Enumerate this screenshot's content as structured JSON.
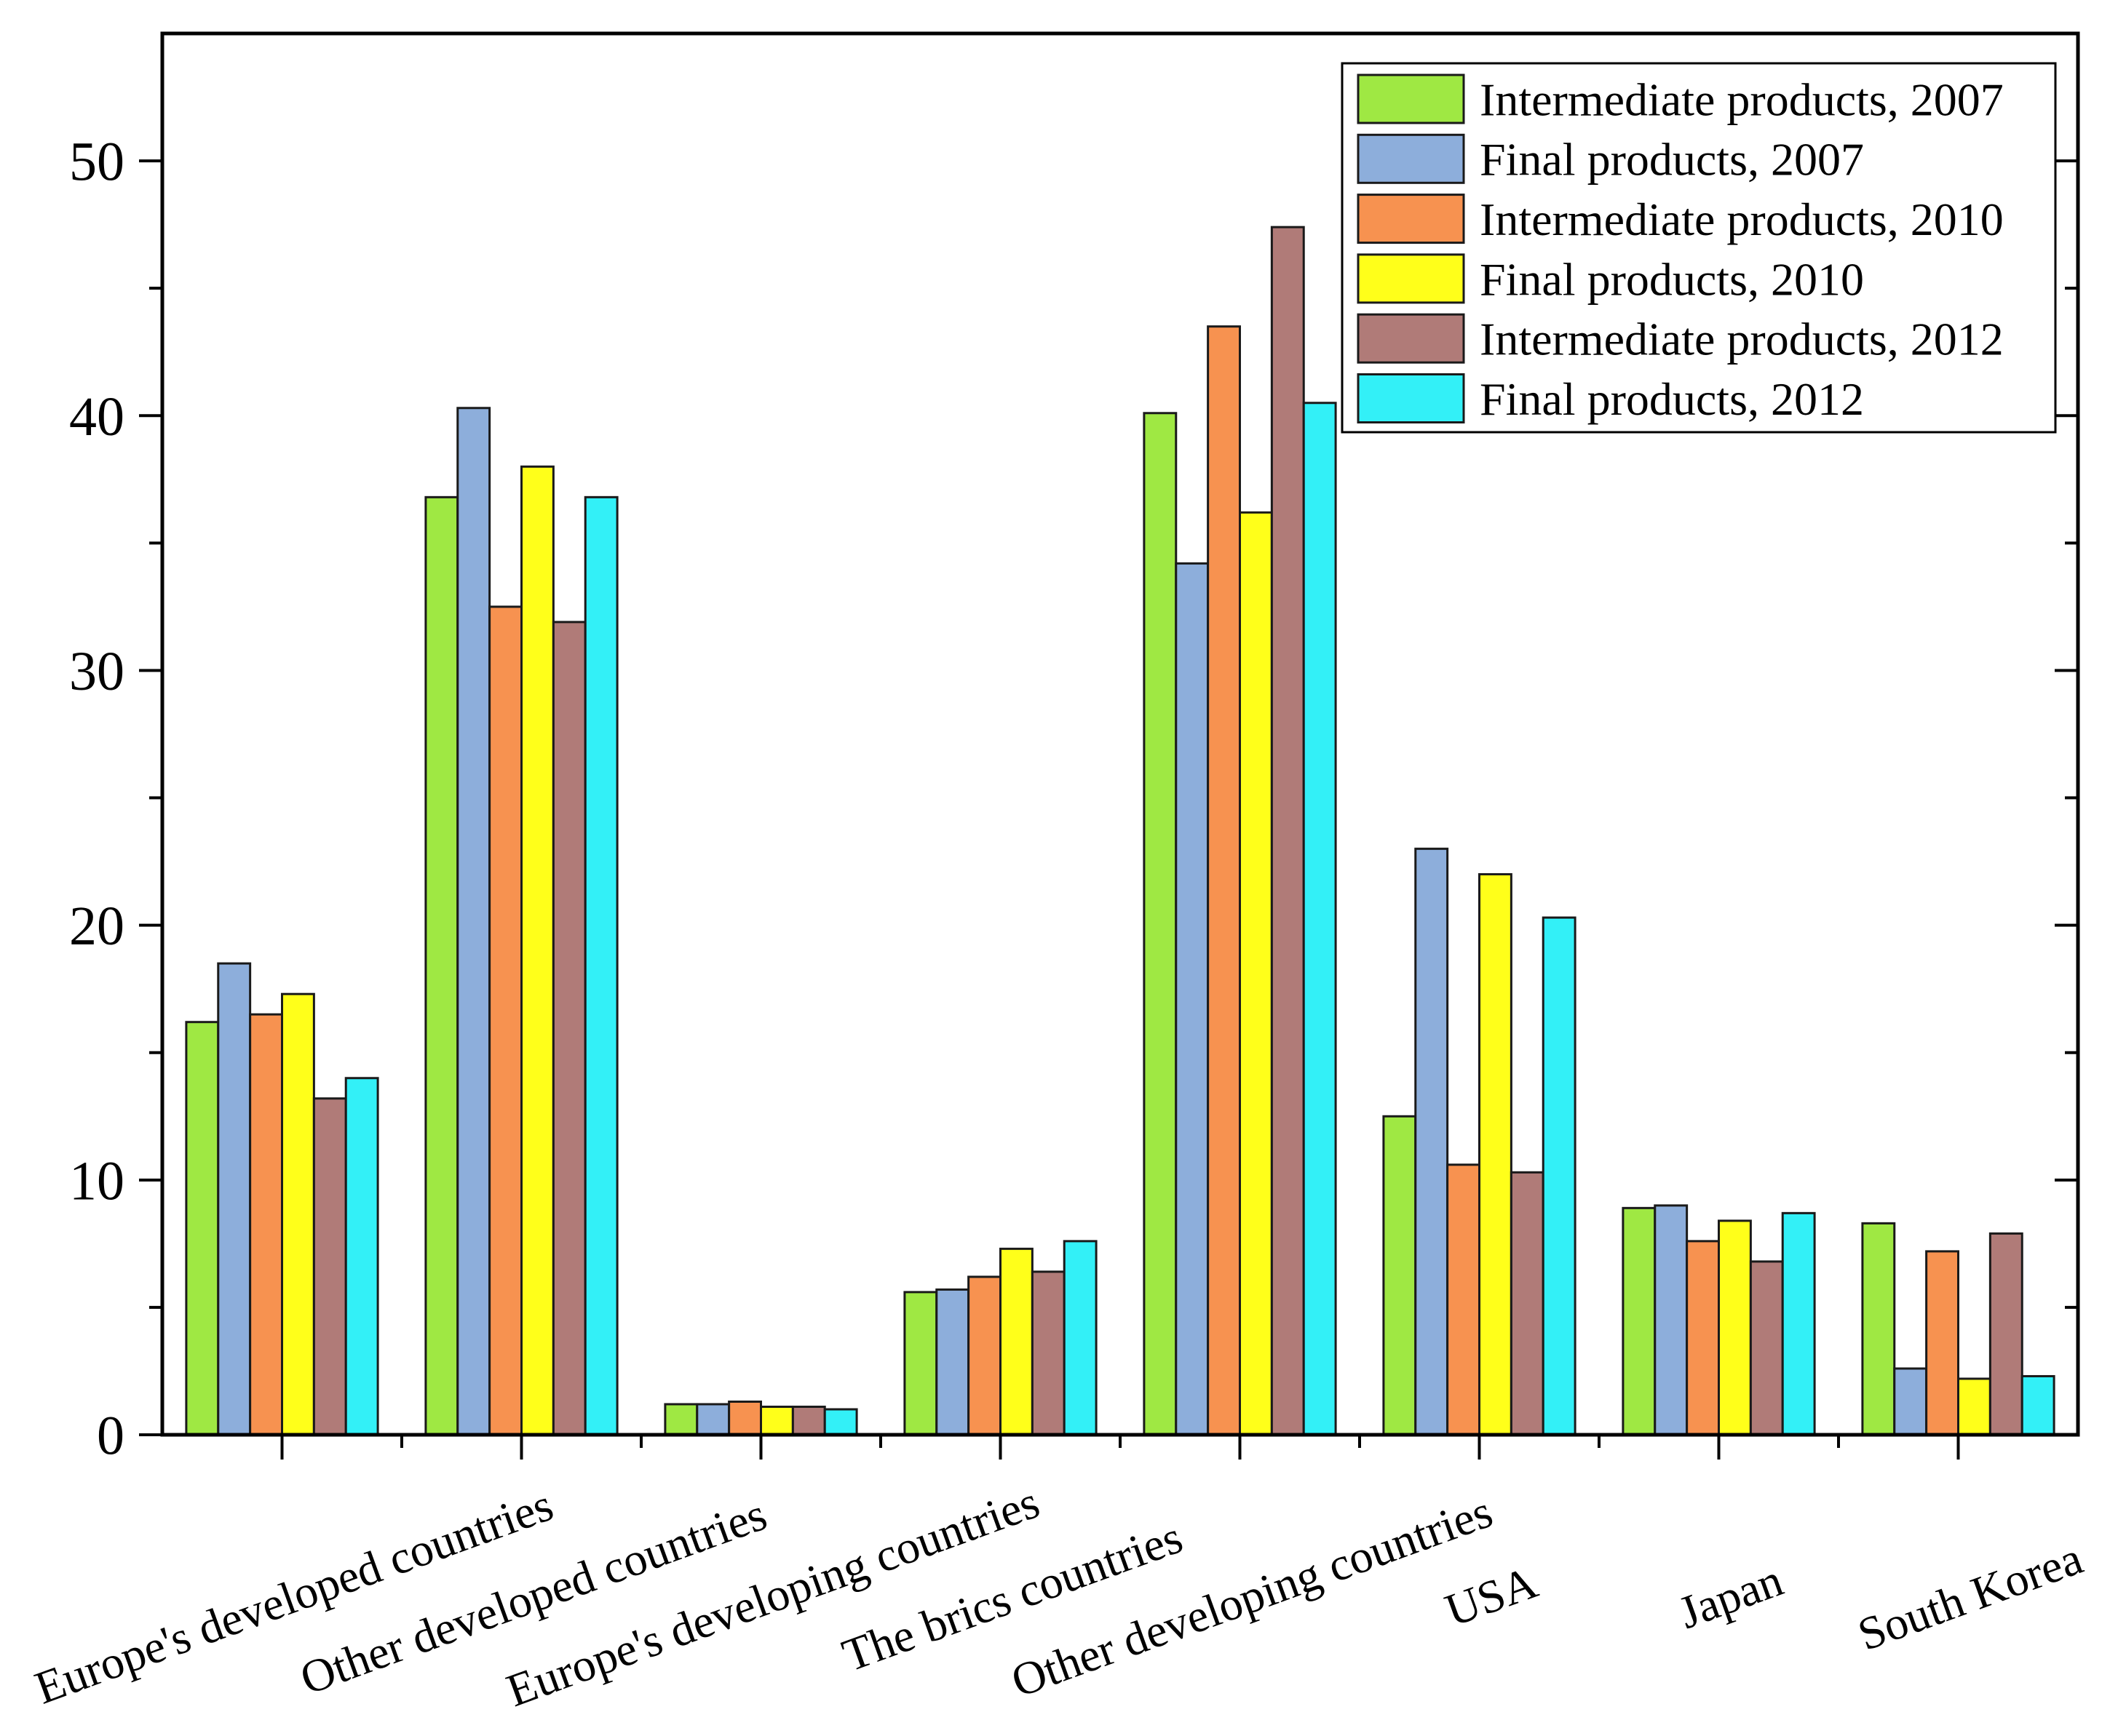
{
  "chart_data": {
    "type": "bar",
    "ylim": [
      0,
      55
    ],
    "yticks": [
      0,
      10,
      20,
      30,
      40,
      50
    ],
    "grid": false,
    "legend_position": "top-right",
    "categories": [
      "Europe's developed countries",
      "Other developed countries",
      "Europe's developing countries",
      "The brics countries",
      "Other developing countries",
      "USA",
      "Japan",
      "South Korea"
    ],
    "series": [
      {
        "name": "Intermediate products, 2007",
        "color": "#9FE843",
        "values": [
          16.2,
          36.8,
          1.2,
          5.6,
          40.1,
          12.5,
          8.9,
          8.3
        ]
      },
      {
        "name": "Final products, 2007",
        "color": "#8DAEDB",
        "values": [
          18.5,
          40.3,
          1.2,
          5.7,
          34.2,
          23.0,
          9.0,
          2.6
        ]
      },
      {
        "name": "Intermediate products, 2010",
        "color": "#F79250",
        "values": [
          16.5,
          32.5,
          1.3,
          6.2,
          43.5,
          10.6,
          7.6,
          7.2
        ]
      },
      {
        "name": "Final products, 2010",
        "color": "#FFFF1A",
        "values": [
          17.3,
          38.0,
          1.1,
          7.3,
          36.2,
          22.0,
          8.4,
          2.2
        ]
      },
      {
        "name": "Intermediate products, 2012",
        "color": "#B07B78",
        "values": [
          13.2,
          31.9,
          1.1,
          6.4,
          47.4,
          10.3,
          6.8,
          7.9
        ]
      },
      {
        "name": "Final products, 2012",
        "color": "#33F0F7",
        "values": [
          14.0,
          36.8,
          1.0,
          7.6,
          40.5,
          20.3,
          8.7,
          2.3
        ]
      }
    ]
  }
}
